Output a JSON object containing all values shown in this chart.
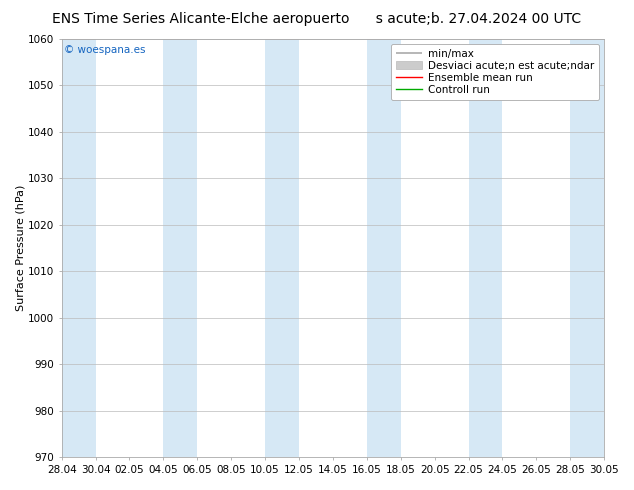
{
  "title": "ENS Time Series Alicante-Elche aeropuerto",
  "subtitle": "s acute;b. 27.04.2024 00 UTC",
  "ylabel": "Surface Pressure (hPa)",
  "ylim": [
    970,
    1060
  ],
  "yticks": [
    970,
    980,
    990,
    1000,
    1010,
    1020,
    1030,
    1040,
    1050,
    1060
  ],
  "xtick_labels": [
    "28.04",
    "30.04",
    "02.05",
    "04.05",
    "06.05",
    "08.05",
    "10.05",
    "12.05",
    "14.05",
    "16.05",
    "18.05",
    "20.05",
    "22.05",
    "24.05",
    "26.05",
    "28.05",
    "30.05"
  ],
  "watermark": "© woespana.es",
  "legend_entries": [
    "min/max",
    "Desviaci acute;n est acute;ndar",
    "Ensemble mean run",
    "Controll run"
  ],
  "band_color": "#d6e8f5",
  "background_color": "#ffffff",
  "grid_color": "#bbbbbb",
  "ensemble_mean_color": "#ff0000",
  "control_run_color": "#00aa00",
  "title_fontsize": 10,
  "tick_fontsize": 7.5,
  "ylabel_fontsize": 8,
  "legend_fontsize": 7.5
}
